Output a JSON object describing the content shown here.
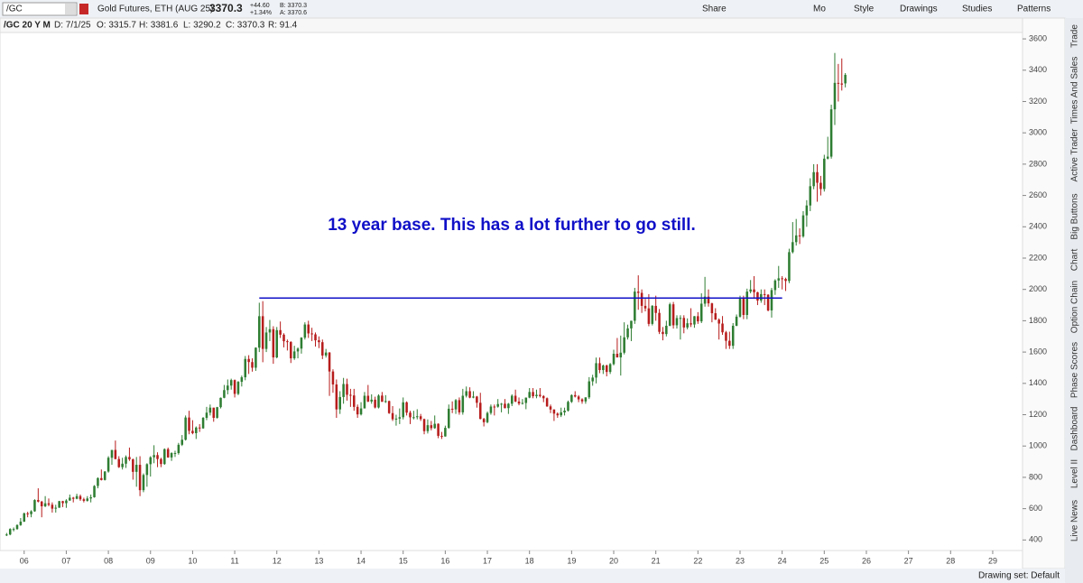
{
  "toolbar": {
    "symbol": "/GC",
    "description": "Gold Futures, ETH (AUG 25)",
    "last": "3370.3",
    "change": "+44.60",
    "change_pct": "+1.34%",
    "bid": "B: 3370.3",
    "ask": "A: 3370.6",
    "buttons": [
      "Share",
      "Mo",
      "Style",
      "Drawings",
      "Studies",
      "Patterns"
    ]
  },
  "info_bar": [
    "/GC 20 Y M",
    "D: 7/1/25",
    "O: 3315.7",
    "H: 3381.6",
    "L: 3290.2",
    "C: 3370.3",
    "R: 91.4"
  ],
  "side_tabs": [
    "Trade",
    "Times And Sales",
    "Active Trader",
    "Big Buttons",
    "Chart",
    "Option Chain",
    "Phase Scores",
    "Dashboard",
    "Level II",
    "Live News"
  ],
  "status": "Drawing set: Default",
  "chart_data": {
    "type": "candlestick",
    "annotation": "13 year base. This has a lot further to go still.",
    "annotation_color": "#1010c8",
    "hline": {
      "value": 1945,
      "color": "#1010c8"
    },
    "up_color": "#2e7d32",
    "down_color": "#b71c1c",
    "xlim": [
      -0.6,
      289.5
    ],
    "ylim": [
      350,
      3635
    ],
    "yticks": [
      400,
      600,
      800,
      1000,
      1200,
      1400,
      1600,
      1800,
      2000,
      2200,
      2400,
      2600,
      2800,
      3000,
      3200,
      3400,
      3600
    ],
    "xticks": [
      {
        "value": 5,
        "label": "06"
      },
      {
        "value": 17,
        "label": "07"
      },
      {
        "value": 29,
        "label": "08"
      },
      {
        "value": 41,
        "label": "09"
      },
      {
        "value": 53,
        "label": "10"
      },
      {
        "value": 65,
        "label": "11"
      },
      {
        "value": 77,
        "label": "12"
      },
      {
        "value": 89,
        "label": "13"
      },
      {
        "value": 101,
        "label": "14"
      },
      {
        "value": 113,
        "label": "15"
      },
      {
        "value": 125,
        "label": "16"
      },
      {
        "value": 137,
        "label": "17"
      },
      {
        "value": 149,
        "label": "18"
      },
      {
        "value": 161,
        "label": "19"
      },
      {
        "value": 173,
        "label": "20"
      },
      {
        "value": 185,
        "label": "21"
      },
      {
        "value": 197,
        "label": "22"
      },
      {
        "value": 209,
        "label": "23"
      },
      {
        "value": 221,
        "label": "24"
      },
      {
        "value": 233,
        "label": "25"
      },
      {
        "value": 245,
        "label": "26"
      },
      {
        "value": 257,
        "label": "27"
      },
      {
        "value": 269,
        "label": "28"
      },
      {
        "value": 281,
        "label": "29"
      }
    ],
    "candles": [
      [
        430,
        445,
        425,
        435
      ],
      [
        435,
        475,
        430,
        470
      ],
      [
        470,
        480,
        455,
        470
      ],
      [
        470,
        500,
        465,
        495
      ],
      [
        495,
        540,
        490,
        517
      ],
      [
        517,
        575,
        515,
        570
      ],
      [
        570,
        580,
        545,
        565
      ],
      [
        565,
        590,
        545,
        583
      ],
      [
        583,
        660,
        580,
        655
      ],
      [
        655,
        730,
        640,
        645
      ],
      [
        645,
        650,
        545,
        615
      ],
      [
        615,
        680,
        610,
        634
      ],
      [
        634,
        665,
        615,
        625
      ],
      [
        625,
        640,
        575,
        600
      ],
      [
        600,
        625,
        575,
        606
      ],
      [
        606,
        650,
        605,
        648
      ],
      [
        648,
        650,
        610,
        635
      ],
      [
        635,
        660,
        605,
        652
      ],
      [
        652,
        690,
        650,
        670
      ],
      [
        670,
        675,
        640,
        663
      ],
      [
        663,
        695,
        660,
        680
      ],
      [
        680,
        690,
        650,
        660
      ],
      [
        660,
        670,
        640,
        650
      ],
      [
        650,
        680,
        645,
        665
      ],
      [
        665,
        690,
        640,
        673
      ],
      [
        673,
        750,
        670,
        745
      ],
      [
        745,
        800,
        730,
        795
      ],
      [
        795,
        850,
        780,
        783
      ],
      [
        783,
        840,
        780,
        837
      ],
      [
        837,
        935,
        830,
        925
      ],
      [
        925,
        975,
        880,
        975
      ],
      [
        975,
        1035,
        915,
        917
      ],
      [
        917,
        935,
        860,
        865
      ],
      [
        865,
        925,
        850,
        887
      ],
      [
        887,
        940,
        860,
        930
      ],
      [
        930,
        990,
        905,
        915
      ],
      [
        915,
        920,
        785,
        835
      ],
      [
        835,
        930,
        740,
        880
      ],
      [
        880,
        935,
        680,
        718
      ],
      [
        718,
        825,
        705,
        815
      ],
      [
        815,
        890,
        740,
        884
      ],
      [
        884,
        935,
        805,
        928
      ],
      [
        928,
        1005,
        890,
        942
      ],
      [
        942,
        960,
        865,
        917
      ],
      [
        917,
        925,
        865,
        885
      ],
      [
        885,
        985,
        880,
        980
      ],
      [
        980,
        990,
        925,
        927
      ],
      [
        927,
        960,
        905,
        955
      ],
      [
        955,
        970,
        930,
        955
      ],
      [
        955,
        1020,
        945,
        1008
      ],
      [
        1008,
        1070,
        1000,
        1040
      ],
      [
        1040,
        1195,
        1035,
        1182
      ],
      [
        1182,
        1225,
        1075,
        1097
      ],
      [
        1097,
        1165,
        1075,
        1082
      ],
      [
        1082,
        1125,
        1045,
        1118
      ],
      [
        1118,
        1140,
        1090,
        1113
      ],
      [
        1113,
        1185,
        1110,
        1180
      ],
      [
        1180,
        1250,
        1165,
        1213
      ],
      [
        1213,
        1265,
        1195,
        1245
      ],
      [
        1245,
        1245,
        1155,
        1180
      ],
      [
        1180,
        1250,
        1175,
        1248
      ],
      [
        1248,
        1310,
        1240,
        1308
      ],
      [
        1308,
        1390,
        1305,
        1357
      ],
      [
        1357,
        1425,
        1330,
        1386
      ],
      [
        1386,
        1430,
        1360,
        1421
      ],
      [
        1421,
        1425,
        1310,
        1333
      ],
      [
        1333,
        1415,
        1325,
        1410
      ],
      [
        1410,
        1450,
        1380,
        1439
      ],
      [
        1439,
        1575,
        1420,
        1556
      ],
      [
        1556,
        1580,
        1460,
        1536
      ],
      [
        1536,
        1560,
        1475,
        1500
      ],
      [
        1500,
        1630,
        1480,
        1628
      ],
      [
        1628,
        1915,
        1600,
        1829
      ],
      [
        1829,
        1925,
        1535,
        1620
      ],
      [
        1620,
        1760,
        1600,
        1725
      ],
      [
        1725,
        1805,
        1670,
        1746
      ],
      [
        1746,
        1765,
        1525,
        1566
      ],
      [
        1566,
        1760,
        1560,
        1740
      ],
      [
        1740,
        1795,
        1690,
        1711
      ],
      [
        1711,
        1720,
        1630,
        1669
      ],
      [
        1669,
        1680,
        1610,
        1664
      ],
      [
        1664,
        1670,
        1530,
        1560
      ],
      [
        1560,
        1640,
        1550,
        1604
      ],
      [
        1604,
        1630,
        1560,
        1622
      ],
      [
        1622,
        1695,
        1590,
        1692
      ],
      [
        1692,
        1790,
        1680,
        1776
      ],
      [
        1776,
        1800,
        1690,
        1719
      ],
      [
        1719,
        1755,
        1670,
        1713
      ],
      [
        1713,
        1725,
        1635,
        1675
      ],
      [
        1675,
        1700,
        1625,
        1663
      ],
      [
        1663,
        1680,
        1555,
        1578
      ],
      [
        1578,
        1620,
        1565,
        1597
      ],
      [
        1597,
        1600,
        1320,
        1476
      ],
      [
        1476,
        1490,
        1340,
        1393
      ],
      [
        1393,
        1425,
        1180,
        1234
      ],
      [
        1234,
        1350,
        1205,
        1313
      ],
      [
        1313,
        1435,
        1270,
        1396
      ],
      [
        1396,
        1430,
        1290,
        1327
      ],
      [
        1327,
        1365,
        1250,
        1323
      ],
      [
        1323,
        1365,
        1225,
        1250
      ],
      [
        1250,
        1265,
        1180,
        1202
      ],
      [
        1202,
        1280,
        1195,
        1240
      ],
      [
        1240,
        1345,
        1240,
        1321
      ],
      [
        1321,
        1390,
        1280,
        1284
      ],
      [
        1284,
        1330,
        1270,
        1296
      ],
      [
        1296,
        1315,
        1240,
        1246
      ],
      [
        1246,
        1330,
        1240,
        1322
      ],
      [
        1322,
        1345,
        1285,
        1282
      ],
      [
        1282,
        1325,
        1275,
        1287
      ],
      [
        1287,
        1290,
        1205,
        1210
      ],
      [
        1210,
        1255,
        1160,
        1171
      ],
      [
        1171,
        1200,
        1130,
        1175
      ],
      [
        1175,
        1240,
        1140,
        1184
      ],
      [
        1184,
        1310,
        1170,
        1279
      ],
      [
        1279,
        1285,
        1195,
        1213
      ],
      [
        1213,
        1225,
        1140,
        1183
      ],
      [
        1183,
        1225,
        1170,
        1184
      ],
      [
        1184,
        1235,
        1170,
        1190
      ],
      [
        1190,
        1205,
        1160,
        1172
      ],
      [
        1172,
        1175,
        1075,
        1095
      ],
      [
        1095,
        1170,
        1080,
        1133
      ],
      [
        1133,
        1160,
        1100,
        1114
      ],
      [
        1114,
        1195,
        1110,
        1142
      ],
      [
        1142,
        1145,
        1050,
        1065
      ],
      [
        1065,
        1090,
        1045,
        1061
      ],
      [
        1061,
        1130,
        1060,
        1116
      ],
      [
        1116,
        1265,
        1110,
        1238
      ],
      [
        1238,
        1285,
        1210,
        1234
      ],
      [
        1234,
        1300,
        1205,
        1293
      ],
      [
        1293,
        1310,
        1200,
        1215
      ],
      [
        1215,
        1365,
        1200,
        1321
      ],
      [
        1321,
        1380,
        1310,
        1350
      ],
      [
        1350,
        1375,
        1305,
        1309
      ],
      [
        1309,
        1350,
        1305,
        1316
      ],
      [
        1316,
        1320,
        1245,
        1276
      ],
      [
        1276,
        1340,
        1170,
        1173
      ],
      [
        1173,
        1180,
        1125,
        1152
      ],
      [
        1152,
        1220,
        1145,
        1211
      ],
      [
        1211,
        1265,
        1200,
        1252
      ],
      [
        1252,
        1265,
        1195,
        1251
      ],
      [
        1251,
        1300,
        1245,
        1268
      ],
      [
        1268,
        1275,
        1215,
        1270
      ],
      [
        1270,
        1300,
        1240,
        1242
      ],
      [
        1242,
        1275,
        1205,
        1270
      ],
      [
        1270,
        1330,
        1255,
        1321
      ],
      [
        1321,
        1360,
        1280,
        1284
      ],
      [
        1284,
        1310,
        1260,
        1271
      ],
      [
        1271,
        1300,
        1265,
        1275
      ],
      [
        1275,
        1310,
        1235,
        1309
      ],
      [
        1309,
        1370,
        1305,
        1345
      ],
      [
        1345,
        1370,
        1305,
        1318
      ],
      [
        1318,
        1360,
        1305,
        1327
      ],
      [
        1327,
        1370,
        1310,
        1319
      ],
      [
        1319,
        1325,
        1280,
        1305
      ],
      [
        1305,
        1310,
        1250,
        1253
      ],
      [
        1253,
        1265,
        1210,
        1233
      ],
      [
        1233,
        1235,
        1160,
        1207
      ],
      [
        1207,
        1215,
        1180,
        1196
      ],
      [
        1196,
        1245,
        1185,
        1215
      ],
      [
        1215,
        1245,
        1195,
        1226
      ],
      [
        1226,
        1290,
        1220,
        1282
      ],
      [
        1282,
        1330,
        1275,
        1325
      ],
      [
        1325,
        1350,
        1310,
        1316
      ],
      [
        1316,
        1325,
        1280,
        1298
      ],
      [
        1298,
        1305,
        1270,
        1285
      ],
      [
        1285,
        1310,
        1270,
        1311
      ],
      [
        1311,
        1440,
        1300,
        1413
      ],
      [
        1413,
        1455,
        1385,
        1437
      ],
      [
        1437,
        1565,
        1400,
        1529
      ],
      [
        1529,
        1565,
        1465,
        1485
      ],
      [
        1485,
        1520,
        1460,
        1514
      ],
      [
        1514,
        1520,
        1445,
        1473
      ],
      [
        1473,
        1530,
        1460,
        1523
      ],
      [
        1523,
        1615,
        1515,
        1589
      ],
      [
        1589,
        1690,
        1565,
        1566
      ],
      [
        1566,
        1705,
        1450,
        1596
      ],
      [
        1596,
        1790,
        1585,
        1694
      ],
      [
        1694,
        1775,
        1680,
        1751
      ],
      [
        1751,
        1800,
        1670,
        1800
      ],
      [
        1800,
        2010,
        1780,
        1986
      ],
      [
        1986,
        2090,
        1870,
        1978
      ],
      [
        1978,
        2000,
        1850,
        1895
      ],
      [
        1895,
        1940,
        1860,
        1879
      ],
      [
        1879,
        1970,
        1765,
        1780
      ],
      [
        1780,
        1900,
        1770,
        1895
      ],
      [
        1895,
        1960,
        1800,
        1850
      ],
      [
        1850,
        1875,
        1715,
        1729
      ],
      [
        1729,
        1760,
        1675,
        1715
      ],
      [
        1715,
        1800,
        1700,
        1768
      ],
      [
        1768,
        1915,
        1765,
        1905
      ],
      [
        1905,
        1920,
        1750,
        1771
      ],
      [
        1771,
        1835,
        1750,
        1817
      ],
      [
        1817,
        1835,
        1680,
        1818
      ],
      [
        1818,
        1835,
        1720,
        1757
      ],
      [
        1757,
        1815,
        1745,
        1784
      ],
      [
        1784,
        1880,
        1760,
        1776
      ],
      [
        1776,
        1830,
        1755,
        1829
      ],
      [
        1829,
        1855,
        1780,
        1796
      ],
      [
        1796,
        1975,
        1785,
        1909
      ],
      [
        1909,
        2080,
        1890,
        1954
      ],
      [
        1954,
        2000,
        1890,
        1911
      ],
      [
        1911,
        1915,
        1790,
        1848
      ],
      [
        1848,
        1880,
        1805,
        1807
      ],
      [
        1807,
        1815,
        1680,
        1782
      ],
      [
        1782,
        1830,
        1710,
        1726
      ],
      [
        1726,
        1735,
        1620,
        1672
      ],
      [
        1672,
        1730,
        1620,
        1640
      ],
      [
        1640,
        1785,
        1620,
        1768
      ],
      [
        1768,
        1840,
        1765,
        1826
      ],
      [
        1826,
        1960,
        1820,
        1945
      ],
      [
        1945,
        1960,
        1810,
        1837
      ],
      [
        1837,
        2005,
        1810,
        1986
      ],
      [
        1986,
        2060,
        1975,
        2000
      ],
      [
        2000,
        2085,
        1940,
        1982
      ],
      [
        1982,
        1985,
        1900,
        1929
      ],
      [
        1929,
        2000,
        1915,
        1970
      ],
      [
        1970,
        2000,
        1900,
        1966
      ],
      [
        1966,
        1970,
        1860,
        1866
      ],
      [
        1866,
        2010,
        1820,
        1996
      ],
      [
        1996,
        2065,
        1965,
        2057
      ],
      [
        2057,
        2150,
        2010,
        2071
      ],
      [
        2071,
        2085,
        2000,
        2067
      ],
      [
        2067,
        2075,
        1990,
        2054
      ],
      [
        2054,
        2260,
        2040,
        2238
      ],
      [
        2238,
        2430,
        2230,
        2302
      ],
      [
        2302,
        2450,
        2280,
        2345
      ],
      [
        2345,
        2390,
        2290,
        2339
      ],
      [
        2339,
        2500,
        2330,
        2473
      ],
      [
        2473,
        2570,
        2400,
        2536
      ],
      [
        2536,
        2710,
        2500,
        2659
      ],
      [
        2659,
        2800,
        2640,
        2749
      ],
      [
        2749,
        2800,
        2560,
        2681
      ],
      [
        2681,
        2725,
        2600,
        2641
      ],
      [
        2641,
        2860,
        2625,
        2835
      ],
      [
        2835,
        2975,
        2830,
        2848
      ],
      [
        2848,
        3180,
        2835,
        3150
      ],
      [
        3150,
        3510,
        3050,
        3319
      ],
      [
        3319,
        3440,
        3200,
        3315
      ],
      [
        3315,
        3475,
        3270,
        3308
      ],
      [
        3315.7,
        3381.6,
        3290.2,
        3370.3
      ]
    ]
  }
}
